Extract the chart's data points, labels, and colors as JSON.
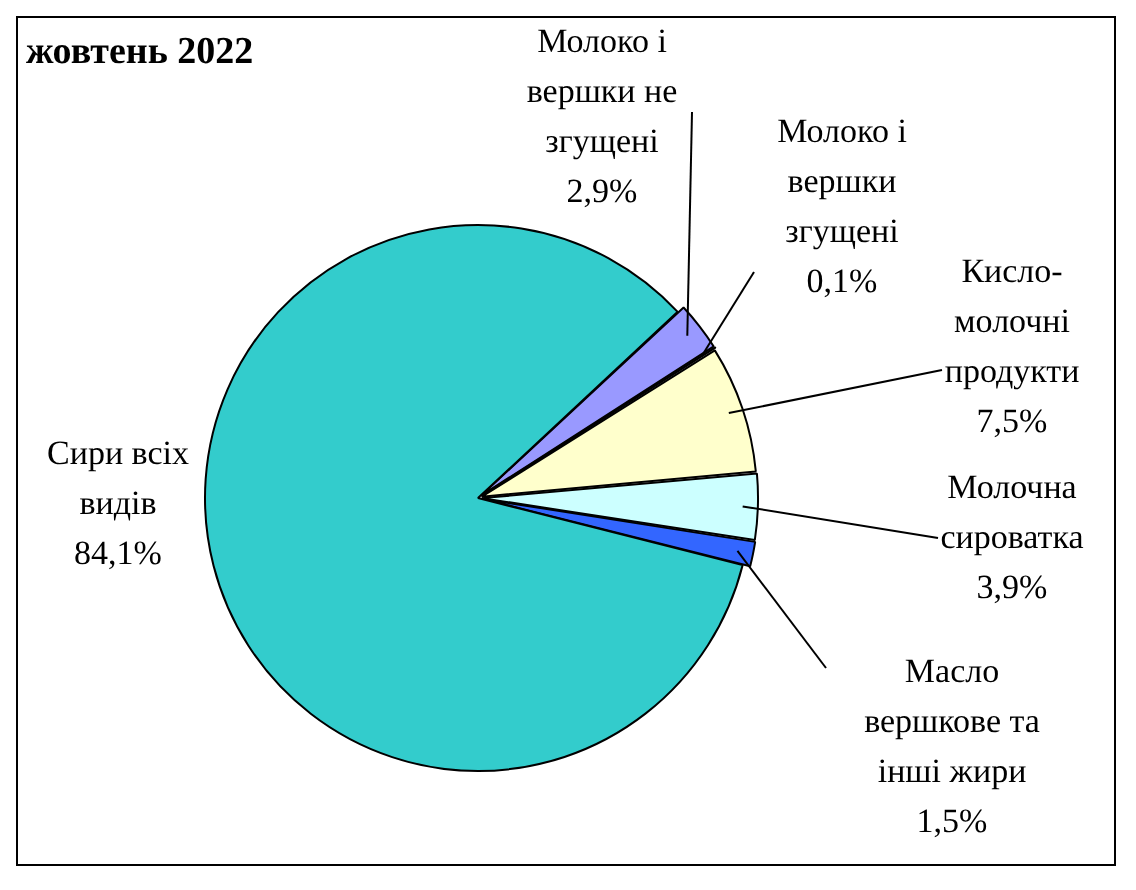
{
  "chart_data": {
    "type": "pie",
    "title": "жовтень 2022",
    "categories": [
      "Молоко і вершки не згущені",
      "Молоко і вершки згущені",
      "Кисло-молочні продукти",
      "Молочна сироватка",
      "Масло вершкове та інші жири",
      "Сири всіх видів"
    ],
    "values": [
      2.9,
      0.1,
      7.5,
      3.9,
      1.5,
      84.1
    ],
    "value_labels": [
      "2,9%",
      "0,1%",
      "7,5%",
      "3,9%",
      "1,5%",
      "84,1%"
    ],
    "colors": [
      "#9999ff",
      "#333399",
      "#ffffcc",
      "#ccffff",
      "#3366ff",
      "#33cccc"
    ],
    "legend": false
  }
}
